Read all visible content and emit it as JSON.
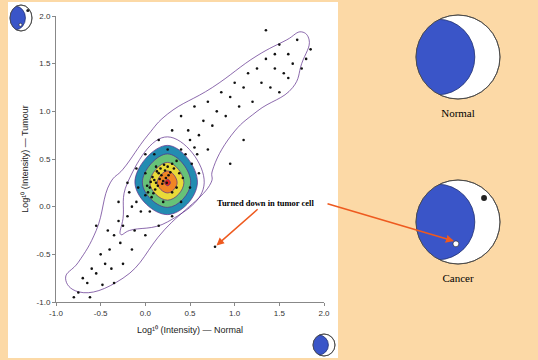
{
  "chart_data": {
    "type": "scatter",
    "x_label": "Log¹⁰ (Intensity) — Normal",
    "y_label": "Log¹⁰ (Intensity) — Tumour",
    "x": [
      0.1,
      0.18,
      0.12,
      0.22,
      0.05,
      0.15,
      0.2,
      0.08,
      0.25,
      0.14,
      0.03,
      0.28,
      0.17,
      0.11,
      0.23,
      0.06,
      0.3,
      0.19,
      0.0,
      0.13,
      0.26,
      0.09,
      0.21,
      0.16,
      0.02,
      0.32,
      0.07,
      0.24,
      0.12,
      0.35,
      -0.1,
      -0.05,
      -0.15,
      -0.2,
      0.4,
      0.45,
      0.5,
      0.38,
      0.0,
      -0.08,
      0.3,
      0.42,
      -0.25,
      -0.3,
      0.55,
      0.48,
      0.05,
      -0.12,
      0.25,
      0.6,
      -0.35,
      -0.28,
      0.35,
      0.1,
      -0.18,
      0.52,
      0.65,
      -0.4,
      0.2,
      0.58,
      -0.45,
      -0.5,
      -0.55,
      -0.6,
      -0.65,
      -0.7,
      -0.75,
      -0.8,
      -0.62,
      -0.48,
      -0.38,
      -0.42,
      -0.3,
      -0.2,
      -0.1,
      0.0,
      0.15,
      0.3,
      0.4,
      0.55,
      0.7,
      0.75,
      0.8,
      0.85,
      0.9,
      0.95,
      1.0,
      1.05,
      1.1,
      1.15,
      0.7,
      0.6,
      0.5,
      0.4,
      0.3,
      0.15,
      0.0,
      -0.15,
      -0.25,
      -0.35,
      1.2,
      1.25,
      1.3,
      1.35,
      1.4,
      1.45,
      1.5,
      1.55,
      1.6,
      1.65,
      1.7,
      1.75,
      1.8,
      1.85,
      1.5,
      1.35,
      1.45,
      1.6,
      0.78,
      0.95,
      -0.55,
      1.1
    ],
    "y": [
      0.28,
      0.33,
      0.25,
      0.38,
      0.2,
      0.35,
      0.27,
      0.31,
      0.42,
      0.22,
      0.15,
      0.36,
      0.4,
      0.18,
      0.3,
      0.26,
      0.45,
      0.24,
      0.12,
      0.37,
      0.33,
      0.14,
      0.44,
      0.29,
      0.22,
      0.4,
      0.1,
      0.25,
      0.42,
      0.48,
      0.05,
      -0.05,
      0.0,
      -0.1,
      0.6,
      0.55,
      0.7,
      0.35,
      0.35,
      0.2,
      0.15,
      0.3,
      -0.2,
      -0.15,
      0.62,
      0.8,
      -0.05,
      -0.25,
      0.6,
      0.75,
      -0.3,
      -0.38,
      0.2,
      0.55,
      0.15,
      0.45,
      0.9,
      -0.45,
      0.05,
      0.55,
      -0.6,
      -0.5,
      -0.7,
      -0.65,
      -0.8,
      -0.75,
      -0.9,
      -0.95,
      -0.95,
      -0.82,
      -0.65,
      -0.25,
      0.05,
      0.25,
      0.4,
      0.55,
      0.7,
      0.8,
      0.95,
      1.05,
      1.1,
      0.85,
      1.0,
      1.2,
      0.95,
      1.15,
      1.3,
      1.05,
      1.25,
      1.4,
      0.6,
      0.35,
      0.2,
      0.05,
      -0.1,
      -0.2,
      -0.3,
      -0.45,
      -0.6,
      -0.8,
      1.1,
      1.45,
      1.3,
      1.55,
      1.25,
      1.45,
      1.7,
      1.4,
      1.6,
      1.5,
      1.75,
      1.45,
      1.55,
      1.65,
      1.2,
      1.85,
      1.6,
      1.35,
      -0.42,
      0.45,
      -0.2,
      0.7
    ],
    "xlim": [
      -1,
      2
    ],
    "ylim": [
      -1,
      2
    ],
    "xticks": [
      {
        "value": -1,
        "label": "-1.0"
      },
      -0.5,
      {
        "value": 0,
        "label": "0.0"
      },
      0.5,
      {
        "value": 1,
        "label": "1.0"
      },
      1.5,
      {
        "value": 2,
        "label": "2.0"
      }
    ],
    "yticks": [
      {
        "value": -1,
        "label": "-1.0"
      },
      -0.5,
      {
        "value": 0,
        "label": "0.0"
      },
      0.5,
      {
        "value": 1,
        "label": "1.0"
      },
      1.5,
      {
        "value": 2,
        "label": "2.0"
      }
    ],
    "grid": false,
    "color": "#111111",
    "annotations": [
      {
        "text": "Turned down in tumor cell",
        "x": 0.78,
        "y": -0.42
      }
    ]
  },
  "cells": [
    {
      "label": "Normal"
    },
    {
      "label": "Cancer"
    }
  ]
}
